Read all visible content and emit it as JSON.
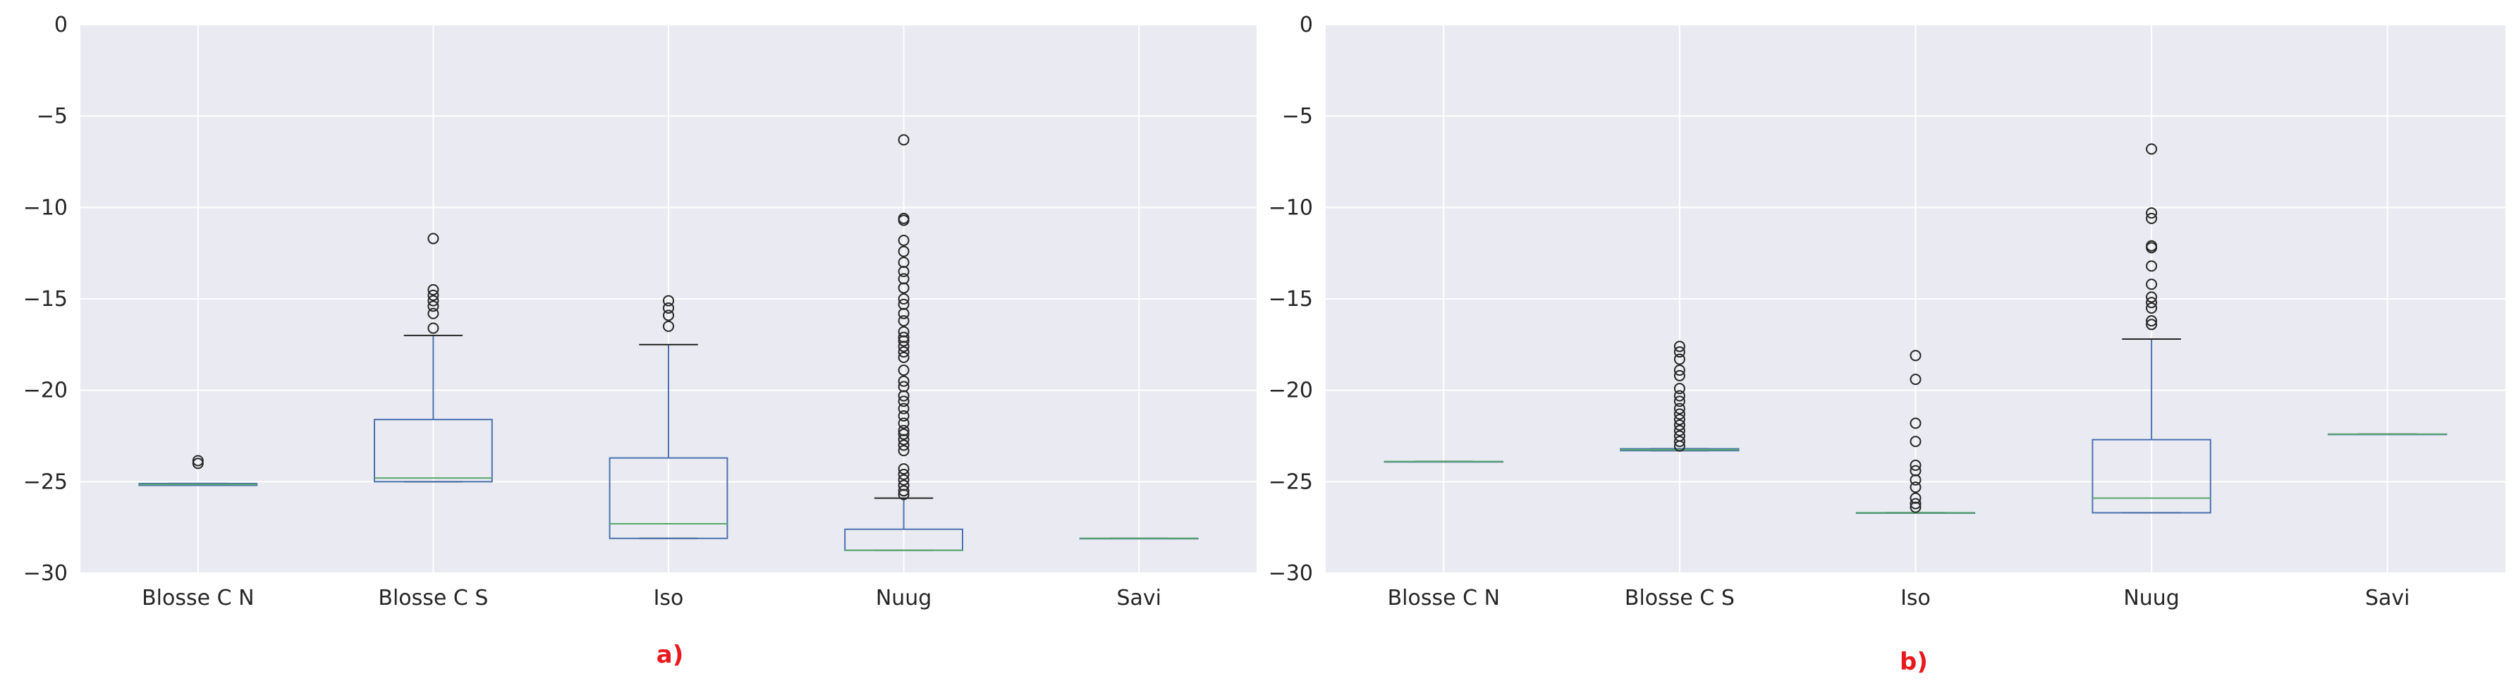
{
  "colors": {
    "plot_background": "#eaeaf2",
    "grid": "#ffffff",
    "box": "#4c72b0",
    "median": "#55a868",
    "cap": "#262626",
    "flier": "#262626",
    "caption": "#e8191d"
  },
  "chart_data": [
    {
      "type": "box",
      "caption": "a)",
      "categories": [
        "Blosse C N",
        "Blosse C S",
        "Iso",
        "Nuug",
        "Savi"
      ],
      "ylim": [
        -30,
        0
      ],
      "yticks": [
        0,
        -5,
        -10,
        -15,
        -20,
        -25,
        -30
      ],
      "grid": true,
      "boxes": [
        {
          "q1": -25.2,
          "median": -25.15,
          "q3": -25.1,
          "whislo": -25.2,
          "whishi": -25.1,
          "fliers": [
            -23.85,
            -24.0
          ]
        },
        {
          "q1": -25.0,
          "median": -24.8,
          "q3": -21.6,
          "whislo": -25.0,
          "whishi": -17.0,
          "fliers": [
            -11.7,
            -14.5,
            -14.8,
            -15.1,
            -15.4,
            -15.8,
            -16.6
          ]
        },
        {
          "q1": -28.1,
          "median": -27.3,
          "q3": -23.7,
          "whislo": -28.1,
          "whishi": -17.5,
          "fliers": [
            -15.1,
            -15.5,
            -15.9,
            -16.5
          ]
        },
        {
          "q1": -28.75,
          "median": -28.75,
          "q3": -27.6,
          "whislo": -28.75,
          "whishi": -25.9,
          "fliers": [
            -6.3,
            -10.6,
            -10.7,
            -11.8,
            -12.4,
            -13.0,
            -13.5,
            -13.9,
            -14.4,
            -15.0,
            -15.3,
            -15.8,
            -16.2,
            -16.8,
            -17.1,
            -17.3,
            -17.6,
            -17.9,
            -18.2,
            -18.9,
            -19.5,
            -19.8,
            -20.3,
            -20.6,
            -21.0,
            -21.4,
            -21.8,
            -22.2,
            -22.4,
            -22.7,
            -23.0,
            -23.3,
            -24.3,
            -24.6,
            -24.9,
            -25.2,
            -25.5,
            -25.7
          ]
        },
        {
          "q1": -28.1,
          "median": -28.1,
          "q3": -28.1,
          "whislo": -28.1,
          "whishi": -28.1,
          "fliers": []
        }
      ]
    },
    {
      "type": "box",
      "caption": "b)",
      "categories": [
        "Blosse C N",
        "Blosse C S",
        "Iso",
        "Nuug",
        "Savi"
      ],
      "ylim": [
        -30,
        0
      ],
      "yticks": [
        0,
        -5,
        -10,
        -15,
        -20,
        -25,
        -30
      ],
      "grid": true,
      "boxes": [
        {
          "q1": -23.9,
          "median": -23.9,
          "q3": -23.9,
          "whislo": -23.9,
          "whishi": -23.9,
          "fliers": []
        },
        {
          "q1": -23.3,
          "median": -23.25,
          "q3": -23.2,
          "whislo": -23.3,
          "whishi": -23.2,
          "fliers": [
            -17.6,
            -17.9,
            -18.3,
            -18.9,
            -19.2,
            -19.9,
            -20.3,
            -20.6,
            -21.0,
            -21.3,
            -21.6,
            -21.9,
            -22.2,
            -22.5,
            -22.8,
            -23.05
          ]
        },
        {
          "q1": -26.7,
          "median": -26.7,
          "q3": -26.7,
          "whislo": -26.7,
          "whishi": -26.7,
          "fliers": [
            -18.1,
            -19.4,
            -21.8,
            -22.8,
            -24.1,
            -24.4,
            -24.9,
            -25.3,
            -25.9,
            -26.2,
            -26.4
          ]
        },
        {
          "q1": -26.7,
          "median": -25.9,
          "q3": -22.7,
          "whislo": -26.7,
          "whishi": -17.2,
          "fliers": [
            -6.8,
            -10.3,
            -10.6,
            -12.1,
            -12.2,
            -13.2,
            -14.2,
            -14.9,
            -15.2,
            -15.5,
            -16.2,
            -16.4
          ]
        },
        {
          "q1": -22.4,
          "median": -22.4,
          "q3": -22.4,
          "whislo": -22.4,
          "whishi": -22.4,
          "fliers": []
        }
      ]
    }
  ]
}
